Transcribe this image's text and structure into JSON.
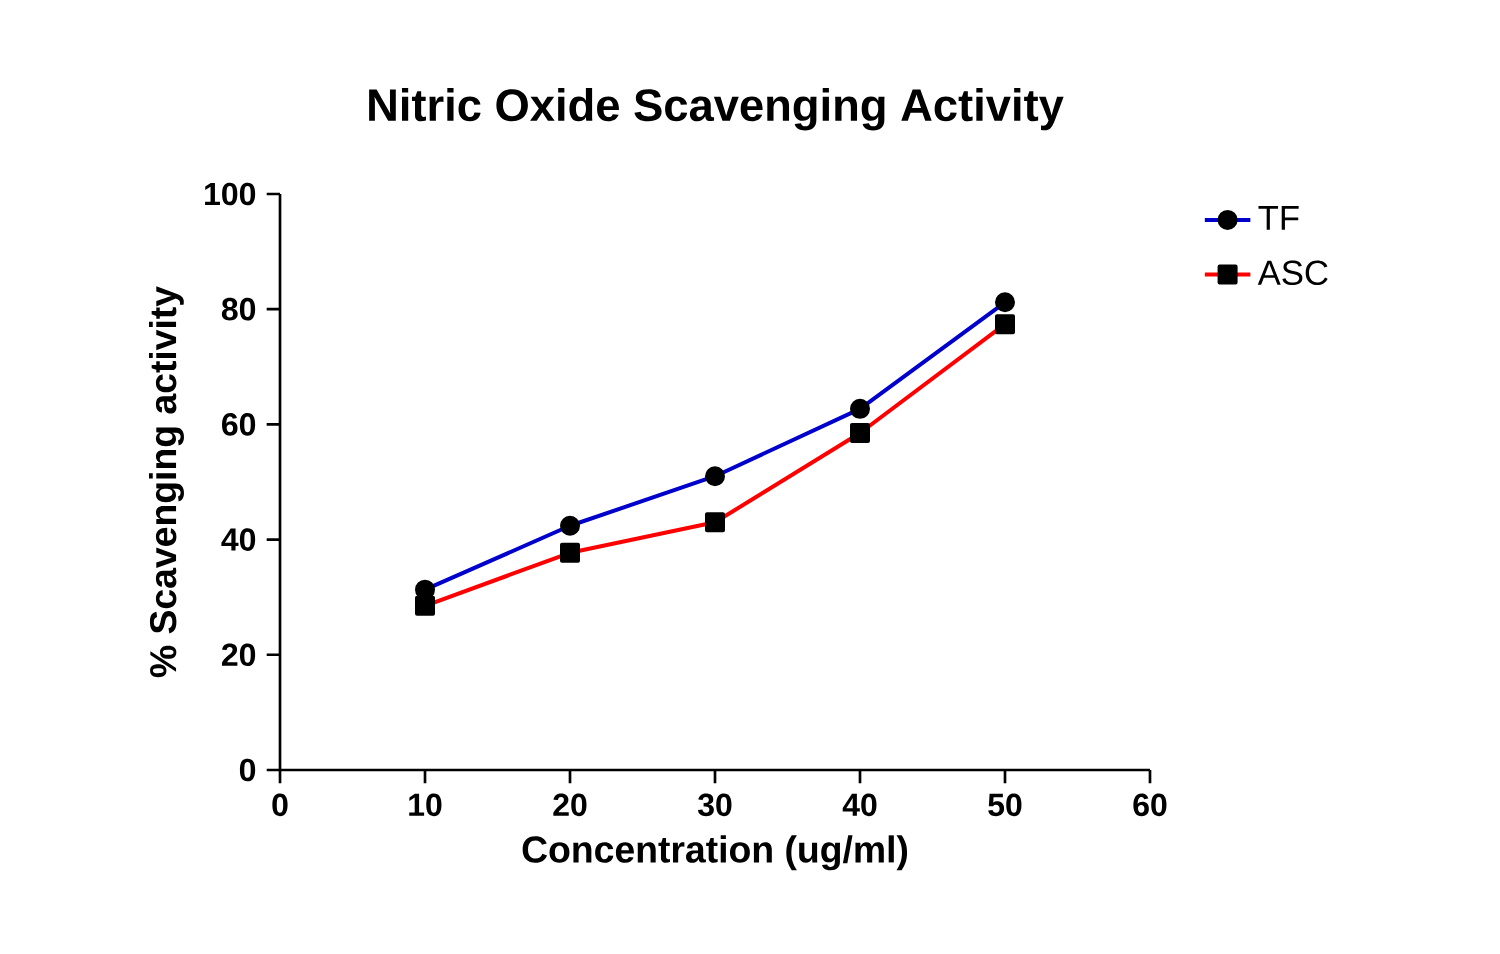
{
  "chart_data": {
    "type": "line",
    "title": "Nitric Oxide Scavenging Activity",
    "xlabel": "Concentration (ug/ml)",
    "ylabel": "% Scavenging activity",
    "x": [
      10,
      20,
      30,
      40,
      50
    ],
    "series": [
      {
        "name": "TF",
        "color": "#0000cc",
        "values": [
          31.3,
          42.4,
          51.0,
          62.7,
          81.2
        ],
        "marker": "circle"
      },
      {
        "name": "ASC",
        "color": "#ff0000",
        "values": [
          28.5,
          37.7,
          43.0,
          58.5,
          77.4
        ],
        "marker": "square"
      }
    ],
    "xlim": [
      0,
      60
    ],
    "xticks": [
      0,
      10,
      20,
      30,
      40,
      50,
      60
    ],
    "ylim": [
      0,
      100
    ],
    "yticks": [
      0,
      20,
      40,
      60,
      80,
      100
    ],
    "grid": false,
    "legend": "top right",
    "line_style": "solid"
  }
}
